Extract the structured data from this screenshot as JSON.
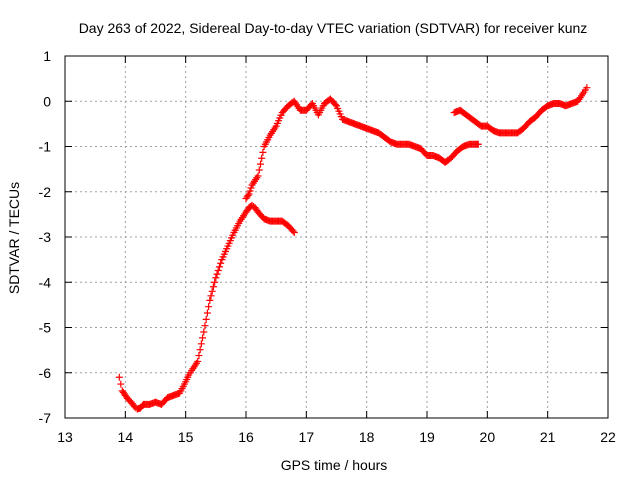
{
  "chart_data": {
    "type": "scatter",
    "title": "Day 263 of 2022, Sidereal Day-to-day VTEC variation (SDTVAR) for receiver kunz",
    "xlabel": "GPS time / hours",
    "ylabel": "SDTVAR / TECUs",
    "xlim": [
      13,
      22
    ],
    "ylim": [
      -7,
      1
    ],
    "xticks": [
      13,
      14,
      15,
      16,
      17,
      18,
      19,
      20,
      21,
      22
    ],
    "yticks": [
      -7,
      -6,
      -5,
      -4,
      -3,
      -2,
      -1,
      0,
      1
    ],
    "grid": true,
    "marker": "+",
    "color": "#ff0000",
    "series": [
      {
        "x": [
          13.9,
          13.95,
          14.0,
          14.05,
          14.1,
          14.15,
          14.2,
          14.25,
          14.3,
          14.4,
          14.5,
          14.6,
          14.7,
          14.8,
          14.9,
          15.0,
          15.05,
          15.1,
          15.2,
          15.3,
          15.4,
          15.5,
          15.6,
          15.7,
          15.8,
          15.9,
          16.0,
          16.05,
          16.1,
          16.15,
          16.2,
          16.3,
          16.4,
          16.5,
          16.6,
          16.7,
          16.8
        ],
        "y": [
          -6.1,
          -6.4,
          -6.5,
          -6.6,
          -6.65,
          -6.75,
          -6.8,
          -6.78,
          -6.7,
          -6.7,
          -6.65,
          -6.7,
          -6.55,
          -6.5,
          -6.45,
          -6.2,
          -6.05,
          -5.95,
          -5.75,
          -5.1,
          -4.4,
          -3.9,
          -3.5,
          -3.2,
          -2.9,
          -2.65,
          -2.45,
          -2.35,
          -2.3,
          -2.35,
          -2.45,
          -2.6,
          -2.65,
          -2.65,
          -2.65,
          -2.75,
          -2.9
        ]
      },
      {
        "x": [
          16.0,
          16.05,
          16.1,
          16.2,
          16.3,
          16.4,
          16.5,
          16.6,
          16.7,
          16.8,
          16.9,
          17.0,
          17.1,
          17.2,
          17.3,
          17.4,
          17.5,
          17.6,
          17.7,
          17.8,
          17.9,
          18.0,
          18.1,
          18.2,
          18.3,
          18.4,
          18.5,
          18.6,
          18.7,
          18.8,
          18.9,
          19.0,
          19.1,
          19.2,
          19.3,
          19.35
        ],
        "y": [
          -2.15,
          -2.05,
          -1.85,
          -1.65,
          -1.0,
          -0.75,
          -0.55,
          -0.25,
          -0.1,
          0.0,
          -0.2,
          -0.2,
          -0.05,
          -0.3,
          -0.05,
          0.05,
          -0.1,
          -0.4,
          -0.45,
          -0.5,
          -0.55,
          -0.6,
          -0.65,
          -0.7,
          -0.8,
          -0.9,
          -0.95,
          -0.95,
          -0.95,
          -1.0,
          -1.05,
          -1.2,
          -1.2,
          -1.25,
          -1.35,
          -1.3
        ]
      },
      {
        "x": [
          19.35,
          19.4,
          19.5,
          19.6,
          19.7,
          19.8,
          19.85
        ],
        "y": [
          -1.3,
          -1.25,
          -1.1,
          -1.0,
          -0.95,
          -0.95,
          -0.95
        ]
      },
      {
        "x": [
          19.45,
          19.55,
          19.6,
          19.7,
          19.8,
          19.9,
          20.0,
          20.1,
          20.2,
          20.3,
          20.4,
          20.5,
          20.6,
          20.7,
          20.8,
          20.9,
          21.0,
          21.1,
          21.2,
          21.3,
          21.4,
          21.5,
          21.6,
          21.65
        ],
        "y": [
          -0.25,
          -0.2,
          -0.25,
          -0.35,
          -0.45,
          -0.55,
          -0.55,
          -0.65,
          -0.7,
          -0.7,
          -0.7,
          -0.7,
          -0.6,
          -0.45,
          -0.35,
          -0.2,
          -0.1,
          -0.05,
          -0.05,
          -0.1,
          -0.05,
          0.0,
          0.2,
          0.3
        ]
      }
    ]
  }
}
